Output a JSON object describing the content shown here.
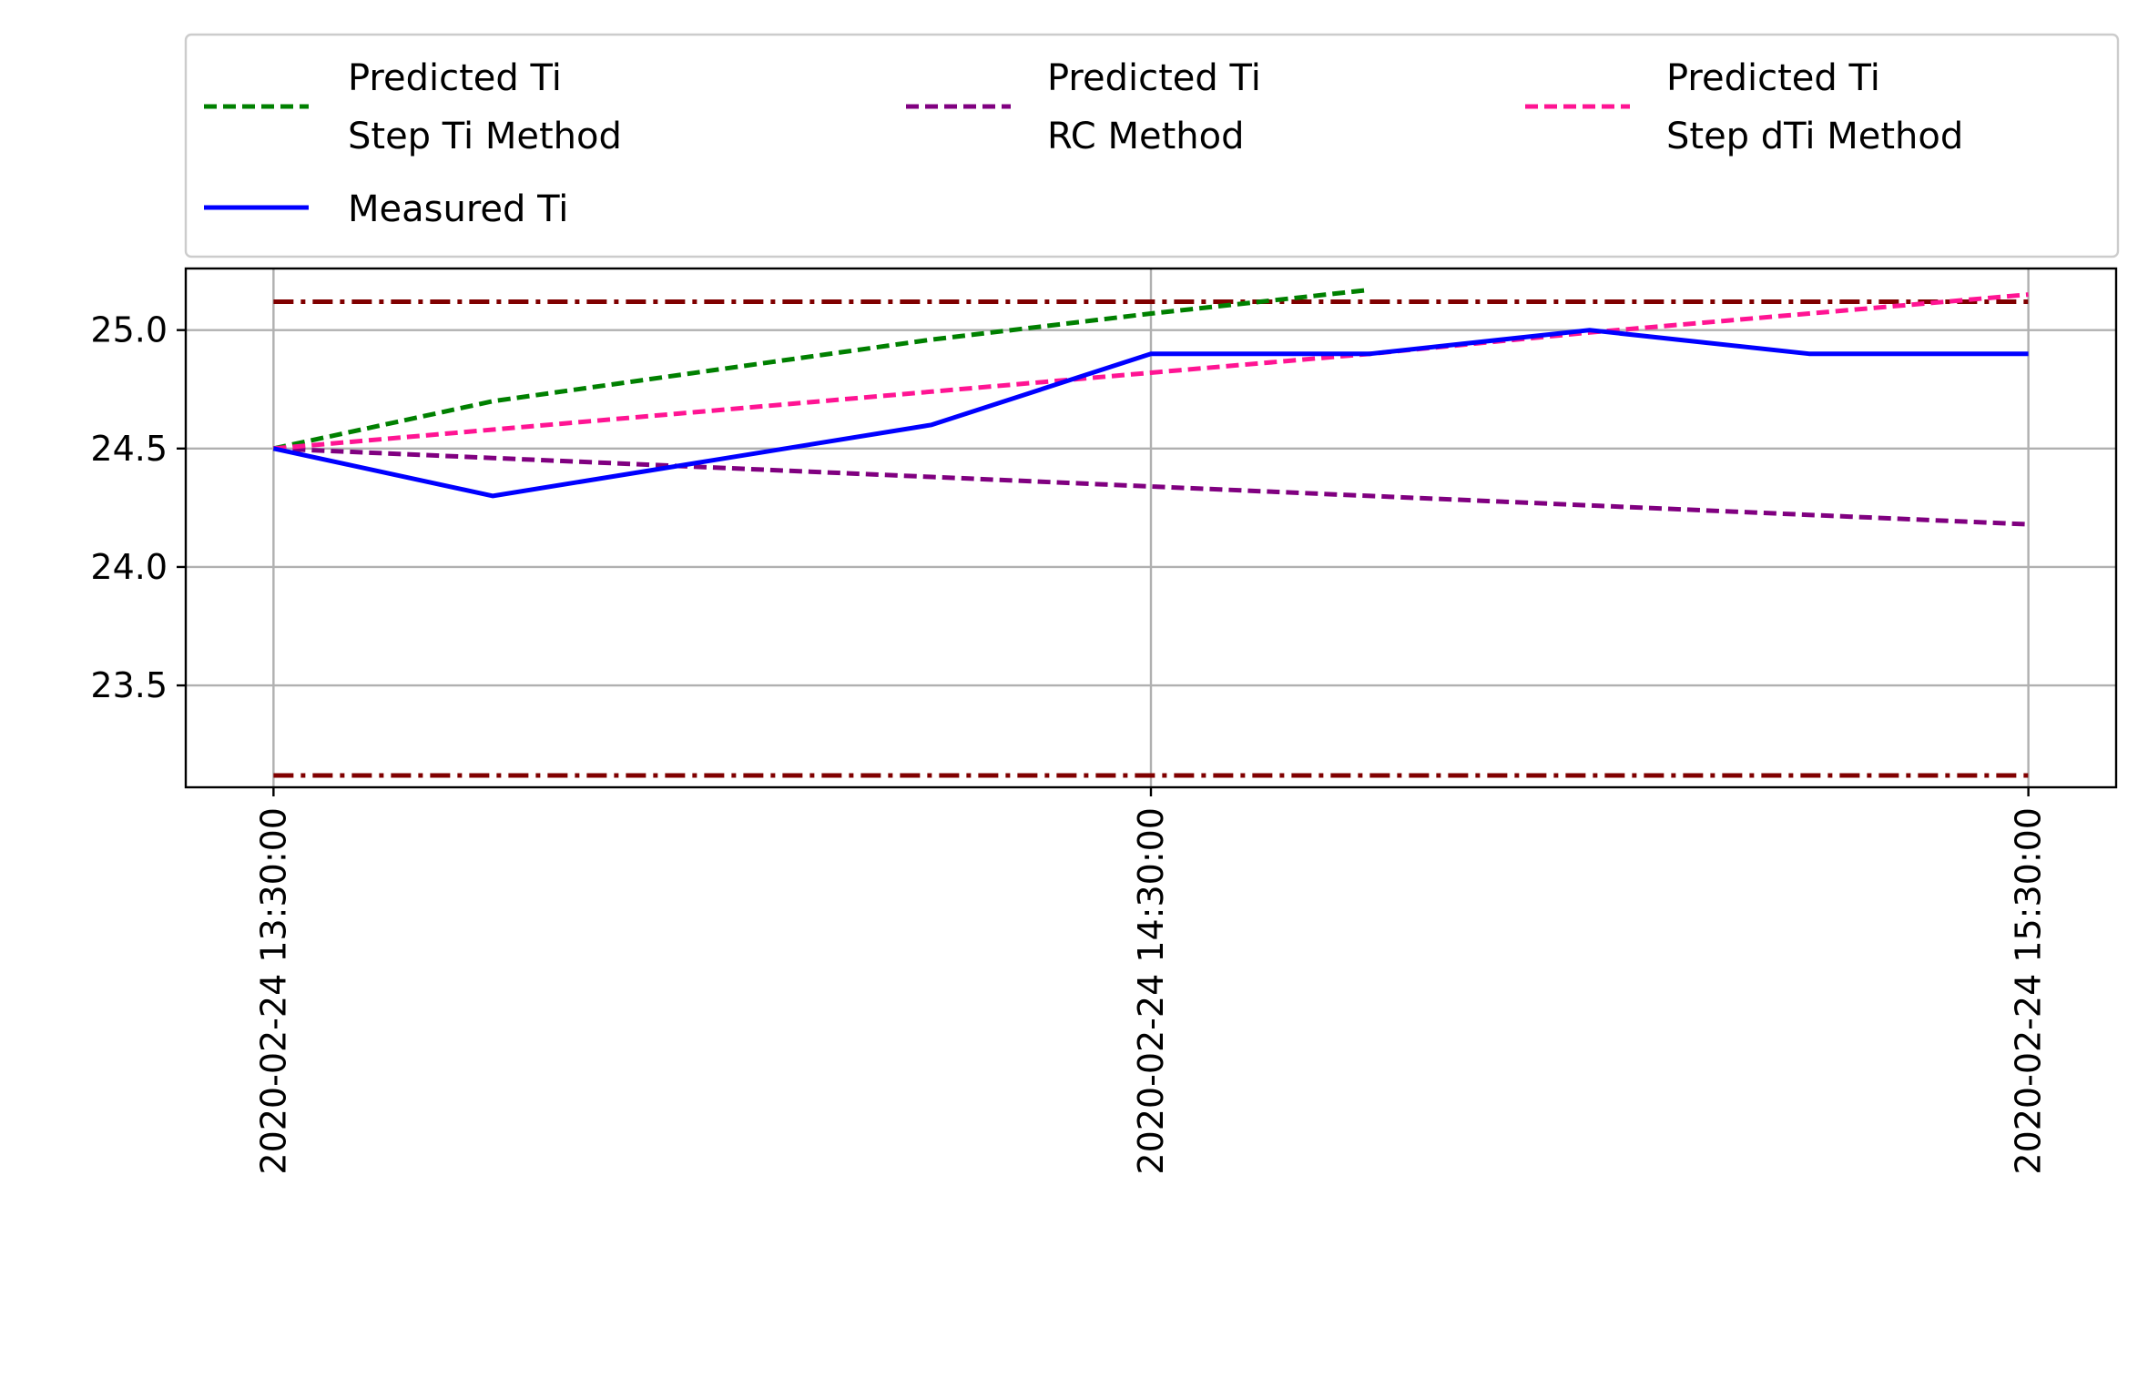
{
  "chart_data": {
    "type": "line",
    "title": "",
    "xlabel": "",
    "ylabel": "",
    "grid": true,
    "legend_position": "top",
    "xlim_minutes": [
      -6,
      126
    ],
    "ylim": [
      23.07,
      25.26
    ],
    "x_ticks": [
      {
        "minutes": 0,
        "label": "2020-02-24 13:30:00"
      },
      {
        "minutes": 60,
        "label": "2020-02-24 14:30:00"
      },
      {
        "minutes": 120,
        "label": "2020-02-24 15:30:00"
      }
    ],
    "y_ticks": [
      {
        "value": 23.5,
        "label": "23.5"
      },
      {
        "value": 24.0,
        "label": "24.0"
      },
      {
        "value": 24.5,
        "label": "24.5"
      },
      {
        "value": 25.0,
        "label": "25.0"
      }
    ],
    "series": [
      {
        "name": "Predicted Ti\n Step Ti Method",
        "color": "#008000",
        "dash": "dashed",
        "x_minutes": [
          0,
          15,
          30,
          45,
          60,
          75
        ],
        "values": [
          24.5,
          24.7,
          24.83,
          24.96,
          25.07,
          25.17
        ]
      },
      {
        "name": "Predicted Ti\n RC Method",
        "color": "#800080",
        "dash": "dashed",
        "x_minutes": [
          0,
          15,
          30,
          45,
          60,
          75,
          90,
          105,
          120
        ],
        "values": [
          24.5,
          24.46,
          24.42,
          24.38,
          24.34,
          24.3,
          24.26,
          24.22,
          24.18
        ]
      },
      {
        "name": "Predicted Ti\n Step dTi Method",
        "color": "#ff1493",
        "dash": "dashed",
        "x_minutes": [
          0,
          15,
          30,
          45,
          60,
          75,
          90,
          105,
          120
        ],
        "values": [
          24.5,
          24.58,
          24.66,
          24.74,
          24.82,
          24.9,
          24.99,
          25.07,
          25.15
        ]
      },
      {
        "name": "Measured Ti",
        "color": "#0000ff",
        "dash": "solid",
        "x_minutes": [
          0,
          15,
          30,
          45,
          60,
          75,
          90,
          105,
          120
        ],
        "values": [
          24.5,
          24.3,
          24.45,
          24.6,
          24.9,
          24.9,
          25.0,
          24.9,
          24.9
        ]
      }
    ],
    "reference_lines": [
      {
        "value": 25.12,
        "color": "#800000",
        "dash": "dashdot"
      },
      {
        "value": 23.12,
        "color": "#800000",
        "dash": "dashdot"
      }
    ],
    "legend": [
      {
        "label_lines": [
          "Predicted Ti",
          " Step Ti Method"
        ],
        "color": "#008000",
        "dash": "dashed"
      },
      {
        "label_lines": [
          "Predicted Ti",
          " RC Method"
        ],
        "color": "#800080",
        "dash": "dashed"
      },
      {
        "label_lines": [
          "Predicted Ti",
          " Step dTi Method"
        ],
        "color": "#ff1493",
        "dash": "dashed"
      },
      {
        "label_lines": [
          "Measured Ti"
        ],
        "color": "#0000ff",
        "dash": "solid"
      }
    ]
  }
}
